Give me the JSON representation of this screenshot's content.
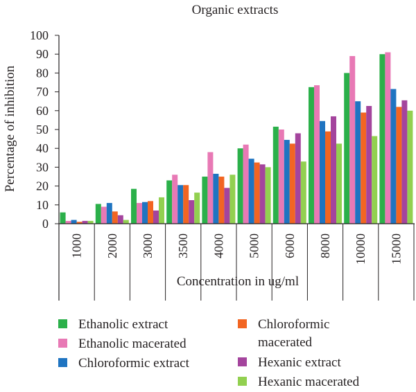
{
  "chart_data": {
    "type": "bar",
    "title": "Organic extracts",
    "xlabel": "Concentration in ug/ml",
    "ylabel": "Percentage of inhibition",
    "ylim": [
      0,
      100
    ],
    "yticks": [
      "0",
      "10",
      "20",
      "30",
      "40",
      "50",
      "60",
      "70",
      "80",
      "90",
      "100"
    ],
    "categories": [
      "1000",
      "2000",
      "3000",
      "3500",
      "4000",
      "5000",
      "6000",
      "8000",
      "10000",
      "15000"
    ],
    "grid": false,
    "legend_position": "bottom",
    "series": [
      {
        "name": "Ethanolic extract",
        "color": "#2bb04a",
        "values": [
          6,
          10.5,
          18.5,
          23,
          25,
          40,
          51.5,
          72.5,
          80,
          90
        ]
      },
      {
        "name": "Ethanolic macerated",
        "color": "#e879b5",
        "values": [
          1.5,
          9,
          11,
          26,
          38,
          42,
          50,
          73.5,
          89,
          91
        ]
      },
      {
        "name": "Chloroformic extract",
        "color": "#1f74c1",
        "values": [
          2,
          11,
          11.5,
          20.5,
          26.5,
          34.5,
          44.5,
          54.5,
          65,
          71.5
        ]
      },
      {
        "name": "Chloroformic macerated",
        "color": "#f26522",
        "values": [
          1,
          6.5,
          12,
          20.5,
          25,
          32.5,
          42.5,
          49,
          59,
          62
        ]
      },
      {
        "name": "Hexanic extract",
        "color": "#a4449d",
        "values": [
          1.5,
          4.5,
          7,
          12.5,
          19,
          31.5,
          48,
          57,
          62.5,
          65.5
        ]
      },
      {
        "name": "Hexanic macerated",
        "color": "#92d050",
        "values": [
          1.5,
          2,
          14,
          16.5,
          26,
          30,
          33,
          42.5,
          46.5,
          60
        ]
      }
    ]
  }
}
